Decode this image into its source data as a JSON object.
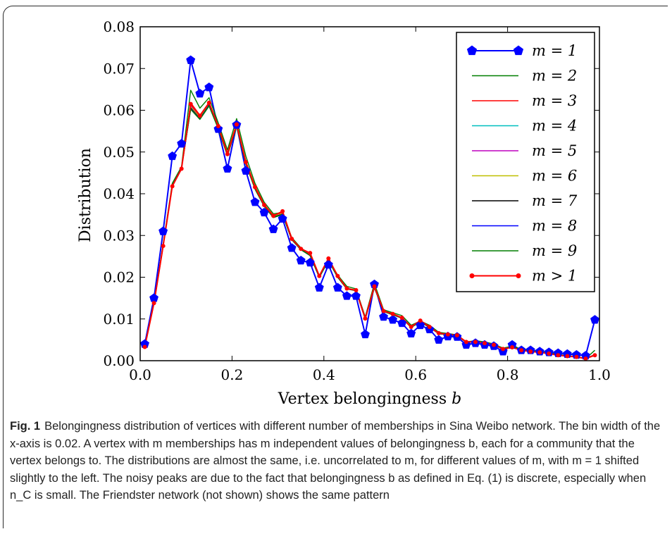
{
  "figure": {
    "label": "Fig. 1",
    "caption": "Belongingness distribution of vertices with different number of memberships in Sina Weibo network. The bin width of the x-axis is 0.02. A vertex with m memberships has m independent values of belongingness b, each for a community that the vertex belongs to. The distributions are almost the same, i.e. uncorrelated to m, for different values of m, with m = 1 shifted slightly to the left. The noisy peaks are due to the fact that belongingness b as defined in Eq. (1) is discrete, especially when n_C is small. The Friendster network (not shown) shows the same pattern"
  },
  "chart_data": {
    "type": "line",
    "title": "",
    "xlabel": "Vertex belongingness b",
    "ylabel": "Distribution",
    "xlim": [
      0.0,
      1.0
    ],
    "ylim": [
      0.0,
      0.08
    ],
    "xticks": [
      "0.0",
      "0.2",
      "0.4",
      "0.6",
      "0.8",
      "1.0"
    ],
    "yticks": [
      "0.00",
      "0.01",
      "0.02",
      "0.03",
      "0.04",
      "0.05",
      "0.06",
      "0.07",
      "0.08"
    ],
    "grid": false,
    "legend_position": "top-right",
    "x": [
      0.01,
      0.03,
      0.05,
      0.07,
      0.09,
      0.11,
      0.13,
      0.15,
      0.17,
      0.19,
      0.21,
      0.23,
      0.25,
      0.27,
      0.29,
      0.31,
      0.33,
      0.35,
      0.37,
      0.39,
      0.41,
      0.43,
      0.45,
      0.47,
      0.49,
      0.51,
      0.53,
      0.55,
      0.57,
      0.59,
      0.61,
      0.63,
      0.65,
      0.67,
      0.69,
      0.71,
      0.73,
      0.75,
      0.77,
      0.79,
      0.81,
      0.83,
      0.85,
      0.87,
      0.89,
      0.91,
      0.93,
      0.95,
      0.97,
      0.99
    ],
    "series": [
      {
        "name": "m = 1",
        "color": "#0000ff",
        "marker": "pentagon",
        "values": [
          0.004,
          0.015,
          0.031,
          0.049,
          0.052,
          0.072,
          0.064,
          0.0655,
          0.0555,
          0.046,
          0.0565,
          0.0455,
          0.038,
          0.0355,
          0.0315,
          0.034,
          0.027,
          0.024,
          0.0235,
          0.0175,
          0.023,
          0.0175,
          0.0155,
          0.0155,
          0.0063,
          0.0183,
          0.0105,
          0.0098,
          0.009,
          0.0065,
          0.0085,
          0.0075,
          0.005,
          0.0058,
          0.0057,
          0.0038,
          0.0042,
          0.0038,
          0.0035,
          0.0022,
          0.0038,
          0.0025,
          0.0025,
          0.0022,
          0.002,
          0.0018,
          0.0016,
          0.0014,
          0.0012,
          0.0098
        ]
      },
      {
        "name": "m = 2",
        "color": "#007f00",
        "values": [
          0.0035,
          0.014,
          0.028,
          0.0425,
          0.0465,
          0.0648,
          0.0605,
          0.063,
          0.057,
          0.0505,
          0.058,
          0.049,
          0.0425,
          0.038,
          0.0352,
          0.0355,
          0.0295,
          0.027,
          0.0255,
          0.0202,
          0.0242,
          0.0205,
          0.0178,
          0.0172,
          0.0105,
          0.0185,
          0.0122,
          0.0115,
          0.0108,
          0.0085,
          0.0095,
          0.0085,
          0.0068,
          0.0065,
          0.0062,
          0.0045,
          0.0048,
          0.0045,
          0.004,
          0.003,
          0.0035,
          0.0028,
          0.0025,
          0.0022,
          0.002,
          0.0015,
          0.0012,
          0.001,
          0.0005,
          0.0025
        ]
      },
      {
        "name": "m = 3",
        "color": "#ff0000",
        "values": [
          0.0034,
          0.0138,
          0.0275,
          0.0418,
          0.046,
          0.0618,
          0.0588,
          0.0618,
          0.0562,
          0.0498,
          0.0568,
          0.0478,
          0.0418,
          0.0375,
          0.0348,
          0.0355,
          0.0292,
          0.0268,
          0.0255,
          0.0202,
          0.0242,
          0.0202,
          0.0172,
          0.0168,
          0.0102,
          0.0178,
          0.0118,
          0.0112,
          0.0102,
          0.0082,
          0.0095,
          0.0082,
          0.0065,
          0.0062,
          0.006,
          0.0045,
          0.0045,
          0.0042,
          0.0038,
          0.0028,
          0.0032,
          0.0025,
          0.0022,
          0.002,
          0.0018,
          0.0014,
          0.0011,
          0.0009,
          0.0005,
          0.0015
        ]
      },
      {
        "name": "m = 4",
        "color": "#00bfbf",
        "values": [
          0.0034,
          0.0138,
          0.0276,
          0.042,
          0.0462,
          0.0612,
          0.0585,
          0.0615,
          0.056,
          0.0495,
          0.0565,
          0.0475,
          0.0415,
          0.0372,
          0.0345,
          0.0352,
          0.029,
          0.0266,
          0.0252,
          0.02,
          0.024,
          0.02,
          0.0172,
          0.0168,
          0.01,
          0.0175,
          0.0118,
          0.011,
          0.0102,
          0.008,
          0.0093,
          0.008,
          0.0065,
          0.0062,
          0.006,
          0.0044,
          0.0045,
          0.0042,
          0.0037,
          0.0028,
          0.0032,
          0.0025,
          0.0022,
          0.002,
          0.0017,
          0.0014,
          0.0011,
          0.0009,
          0.0005,
          0.0014
        ]
      },
      {
        "name": "m = 5",
        "color": "#bf00bf",
        "values": [
          0.0034,
          0.0138,
          0.0276,
          0.042,
          0.0462,
          0.061,
          0.0584,
          0.0614,
          0.056,
          0.0495,
          0.0565,
          0.0475,
          0.0415,
          0.0372,
          0.0345,
          0.0352,
          0.029,
          0.0266,
          0.0252,
          0.02,
          0.024,
          0.02,
          0.0172,
          0.0168,
          0.01,
          0.0175,
          0.0118,
          0.011,
          0.0102,
          0.008,
          0.0093,
          0.008,
          0.0065,
          0.0062,
          0.006,
          0.0044,
          0.0045,
          0.0042,
          0.0037,
          0.0028,
          0.0032,
          0.0025,
          0.0022,
          0.002,
          0.0017,
          0.0014,
          0.0011,
          0.0009,
          0.0005,
          0.0014
        ]
      },
      {
        "name": "m = 6",
        "color": "#bfbf00",
        "values": [
          0.0034,
          0.0138,
          0.0276,
          0.042,
          0.0462,
          0.0608,
          0.0583,
          0.0613,
          0.0559,
          0.0494,
          0.0564,
          0.0474,
          0.0414,
          0.0372,
          0.0345,
          0.0352,
          0.029,
          0.0266,
          0.0252,
          0.02,
          0.024,
          0.02,
          0.0172,
          0.0168,
          0.01,
          0.0175,
          0.0118,
          0.011,
          0.0102,
          0.008,
          0.0093,
          0.008,
          0.0065,
          0.0062,
          0.006,
          0.0044,
          0.0045,
          0.0042,
          0.0037,
          0.0028,
          0.0032,
          0.0025,
          0.0022,
          0.002,
          0.0017,
          0.0014,
          0.0011,
          0.0009,
          0.0005,
          0.0014
        ]
      },
      {
        "name": "m = 7",
        "color": "#000000",
        "values": [
          0.0034,
          0.0138,
          0.0276,
          0.042,
          0.0462,
          0.0605,
          0.058,
          0.0612,
          0.0558,
          0.0493,
          0.0563,
          0.0473,
          0.0413,
          0.0371,
          0.0344,
          0.0351,
          0.029,
          0.0266,
          0.0252,
          0.02,
          0.024,
          0.02,
          0.0172,
          0.0168,
          0.01,
          0.0175,
          0.0118,
          0.011,
          0.0102,
          0.008,
          0.0093,
          0.008,
          0.0065,
          0.0062,
          0.006,
          0.0044,
          0.0045,
          0.0042,
          0.0037,
          0.0028,
          0.0032,
          0.0025,
          0.0022,
          0.002,
          0.0017,
          0.0014,
          0.0011,
          0.0009,
          0.0005,
          0.0014
        ]
      },
      {
        "name": "m = 8",
        "color": "#0000ff",
        "values": [
          0.0034,
          0.0138,
          0.0276,
          0.042,
          0.0462,
          0.0603,
          0.0579,
          0.0611,
          0.0557,
          0.0492,
          0.0562,
          0.0472,
          0.0412,
          0.037,
          0.0343,
          0.035,
          0.029,
          0.0266,
          0.0252,
          0.02,
          0.024,
          0.02,
          0.0172,
          0.0168,
          0.01,
          0.0175,
          0.0118,
          0.011,
          0.0102,
          0.008,
          0.0093,
          0.008,
          0.0065,
          0.0062,
          0.006,
          0.0044,
          0.0045,
          0.0042,
          0.0037,
          0.0028,
          0.0032,
          0.0025,
          0.0022,
          0.002,
          0.0017,
          0.0014,
          0.0011,
          0.0009,
          0.0005,
          0.0014
        ]
      },
      {
        "name": "m = 9",
        "color": "#007f00",
        "values": [
          0.0034,
          0.0138,
          0.0276,
          0.042,
          0.0462,
          0.0602,
          0.0578,
          0.061,
          0.0556,
          0.0491,
          0.0561,
          0.0471,
          0.0411,
          0.037,
          0.0343,
          0.035,
          0.029,
          0.0266,
          0.0252,
          0.02,
          0.024,
          0.02,
          0.0172,
          0.0168,
          0.01,
          0.0175,
          0.0118,
          0.011,
          0.0102,
          0.008,
          0.0093,
          0.008,
          0.0065,
          0.0062,
          0.006,
          0.0044,
          0.0045,
          0.0042,
          0.0037,
          0.0028,
          0.0032,
          0.0025,
          0.0022,
          0.002,
          0.0017,
          0.0014,
          0.0011,
          0.0009,
          0.0005,
          0.0014
        ]
      },
      {
        "name": "m > 1",
        "color": "#ff0000",
        "marker": "dot",
        "values": [
          0.0033,
          0.0138,
          0.0275,
          0.0418,
          0.046,
          0.0615,
          0.0587,
          0.0618,
          0.0562,
          0.0495,
          0.0566,
          0.0476,
          0.0416,
          0.0373,
          0.0347,
          0.0358,
          0.0292,
          0.0268,
          0.0258,
          0.0203,
          0.0245,
          0.0203,
          0.0173,
          0.0169,
          0.0101,
          0.0178,
          0.0119,
          0.0112,
          0.0103,
          0.0081,
          0.0096,
          0.0081,
          0.0066,
          0.0063,
          0.0061,
          0.0045,
          0.0045,
          0.0042,
          0.0038,
          0.0028,
          0.0032,
          0.0025,
          0.0022,
          0.002,
          0.0017,
          0.0013,
          0.0011,
          0.0009,
          0.0005,
          0.0013
        ]
      }
    ]
  }
}
